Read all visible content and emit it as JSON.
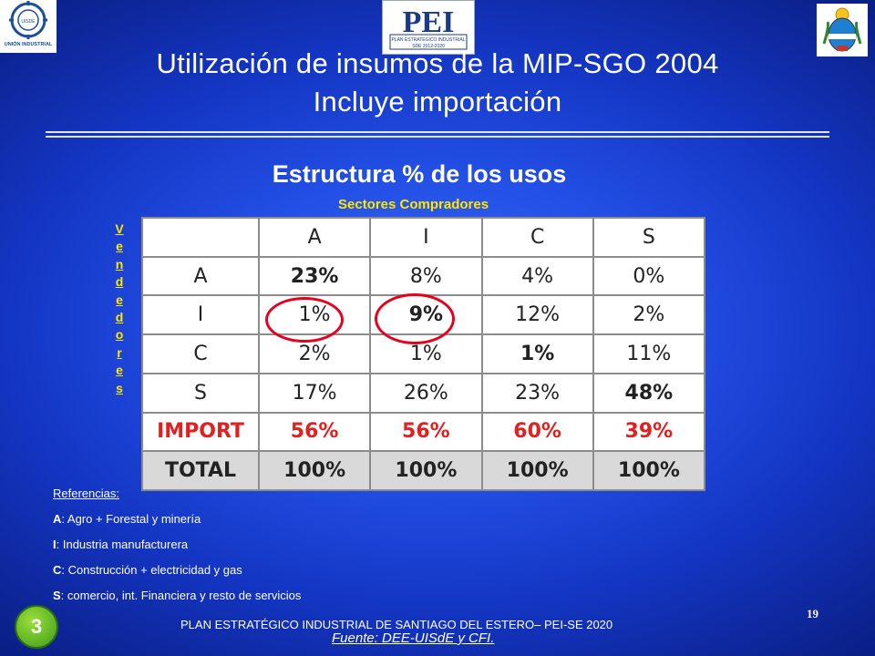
{
  "header": {
    "title_line1": "Utilización de insumos de la MIP-SGO 2004",
    "title_line2": "Incluye importación",
    "logo_center_text": "PEI",
    "logo_center_sub1": "PLAN ESTRATEGICO INDUSTRIAL",
    "logo_center_sub2": "SDE 2012-2020",
    "logo_left_text": "UNIÓN INDUSTRIAL",
    "logo_left_initials": "UISDE"
  },
  "subtitle": "Estructura % de los usos",
  "column_group_label": "Sectores Compradores",
  "row_group_label": [
    "V",
    "e",
    "n",
    "d",
    "e",
    "d",
    "o",
    "r",
    "e",
    "s"
  ],
  "table": {
    "columns": [
      "",
      "A",
      "I",
      "C",
      "S"
    ],
    "rows": [
      {
        "label": "A",
        "values": [
          "23%",
          "8%",
          "4%",
          "0%"
        ]
      },
      {
        "label": "I",
        "values": [
          "1%",
          "9%",
          "12%",
          "2%"
        ]
      },
      {
        "label": "C",
        "values": [
          "2%",
          "1%",
          "1%",
          "11%"
        ]
      },
      {
        "label": "S",
        "values": [
          "17%",
          "26%",
          "23%",
          "48%"
        ]
      },
      {
        "label": "IMPORT",
        "values": [
          "56%",
          "56%",
          "60%",
          "39%"
        ]
      },
      {
        "label": "TOTAL",
        "values": [
          "100%",
          "100%",
          "100%",
          "100%"
        ]
      }
    ]
  },
  "references": {
    "header": "Referencias:",
    "items": [
      {
        "key": "A",
        "text": ": Agro + Forestal y minería"
      },
      {
        "key": "I",
        "text": ": Industria manufacturera"
      },
      {
        "key": "C",
        "text": ": Construcción + electricidad y gas"
      },
      {
        "key": "S",
        "text": ": comercio, int. Financiera y resto de servicios"
      }
    ]
  },
  "badge": "3",
  "page_number": "19",
  "footer": "PLAN ESTRATÉGICO INDUSTRIAL  DE SANTIAGO DEL ESTERO– PEI-SE 2020",
  "source": "Fuente: DEE-UISdE  y  CFI.",
  "colors": {
    "accent_yellow": "#ffe600",
    "import_red": "#e32020",
    "circle_red": "#e8001c"
  }
}
